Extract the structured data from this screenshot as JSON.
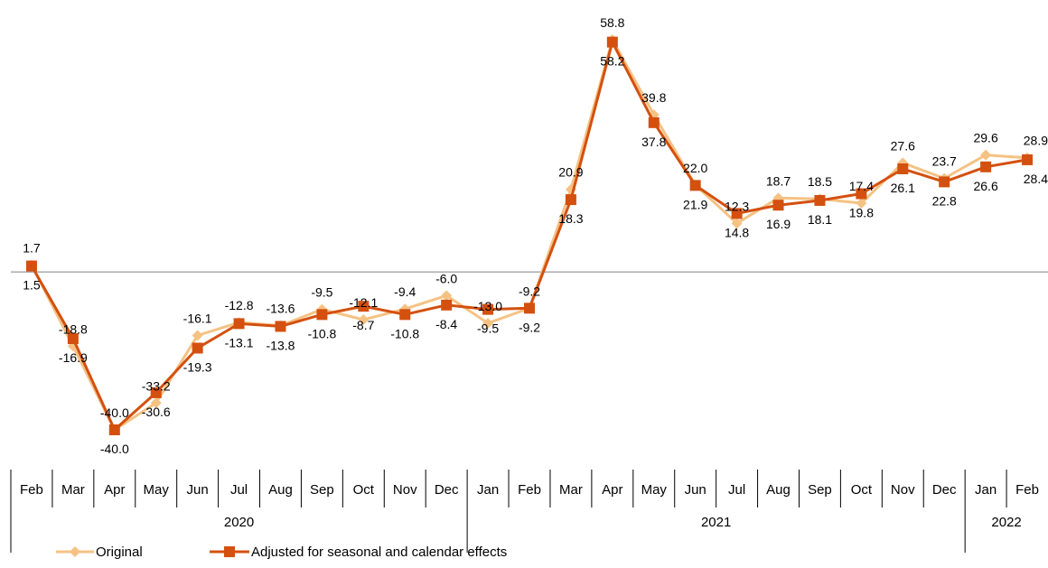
{
  "chart_data": {
    "type": "line",
    "title": "",
    "x": [
      "Feb",
      "Mar",
      "Apr",
      "May",
      "Jun",
      "Jul",
      "Aug",
      "Sep",
      "Oct",
      "Nov",
      "Dec",
      "Jan",
      "Feb",
      "Mar",
      "Apr",
      "May",
      "Jun",
      "Jul",
      "Aug",
      "Sep",
      "Oct",
      "Nov",
      "Dec",
      "Jan",
      "Feb"
    ],
    "years": [
      {
        "label": "2020",
        "start": 0,
        "end": 10
      },
      {
        "label": "2021",
        "start": 11,
        "end": 22
      },
      {
        "label": "2022",
        "start": 23,
        "end": 24
      }
    ],
    "ylim": [
      -45,
      62
    ],
    "series": [
      {
        "name": "Original",
        "color": "#f5c283",
        "marker": "diamond",
        "label_position": "above",
        "values": [
          1.7,
          -18.8,
          -40.0,
          -33.2,
          -16.1,
          -12.8,
          -13.6,
          -9.5,
          -12.1,
          -9.4,
          -6.0,
          -13.0,
          -9.2,
          20.9,
          58.8,
          39.8,
          22.0,
          12.3,
          18.7,
          18.5,
          17.4,
          27.6,
          23.7,
          29.6,
          28.9
        ],
        "labels": [
          "1.7",
          "-18.8",
          "-40.0",
          "-33.2",
          "-16.1",
          "-12.8",
          "-13.6",
          "-9.5",
          "-12.1",
          "-9.4",
          "-6.0",
          "-13.0",
          "-9.2",
          "20.9",
          "58.8",
          "39.8",
          "22.0",
          "12.3",
          "18.7",
          "18.5",
          "17.4",
          "27.6",
          "23.7",
          "29.6",
          "28.9"
        ]
      },
      {
        "name": "Adjusted for seasonal and calendar effects",
        "color": "#d4500f",
        "marker": "square",
        "label_position": "below",
        "values": [
          1.5,
          -16.9,
          -40.0,
          -30.6,
          -19.3,
          -13.1,
          -13.8,
          -10.8,
          -8.7,
          -10.8,
          -8.4,
          -9.5,
          -9.2,
          18.3,
          58.2,
          37.8,
          21.9,
          14.8,
          16.9,
          18.1,
          19.8,
          26.1,
          22.8,
          26.6,
          28.4
        ],
        "labels": [
          "1.5",
          "-16.9",
          "-40.0",
          "-30.6",
          "-19.3",
          "-13.1",
          "-13.8",
          "-10.8",
          "-8.7",
          "-10.8",
          "-8.4",
          "-9.5",
          "-9.2",
          "18.3",
          "58.2",
          "37.8",
          "21.9",
          "14.8",
          "16.9",
          "18.1",
          "19.8",
          "26.1",
          "22.8",
          "26.6",
          "28.4"
        ]
      }
    ],
    "legend_position": "bottom-left",
    "grid": false
  }
}
